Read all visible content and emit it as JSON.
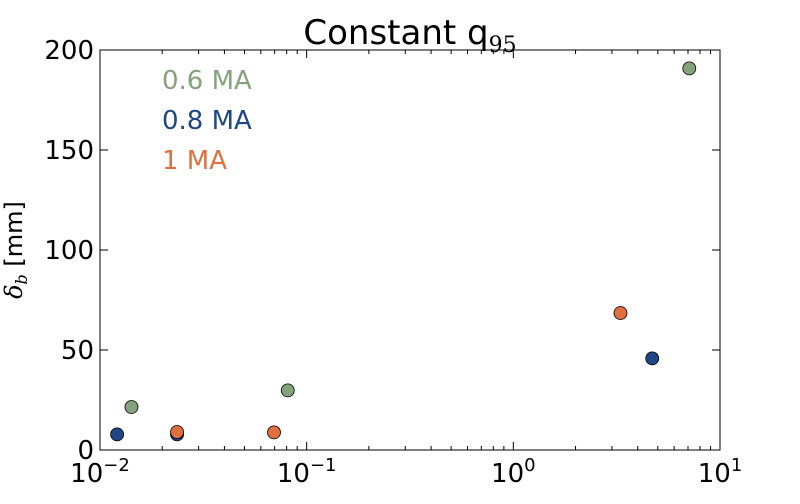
{
  "chart_data": {
    "type": "scatter",
    "title": "Constant q",
    "title_subscript": "95",
    "xlabel": "",
    "ylabel": "δ",
    "ylabel_subscript": "b",
    "ylabel_unit": " [mm]",
    "xscale": "log",
    "xlim": [
      0.01,
      10
    ],
    "ylim": [
      0,
      200
    ],
    "yticks": [
      0,
      50,
      100,
      150,
      200
    ],
    "ytick_labels": [
      "0",
      "50",
      "100",
      "150",
      "200"
    ],
    "xticks": [
      0.01,
      0.1,
      1,
      10
    ],
    "xtick_labels": [
      {
        "base": "10",
        "exp": "−2"
      },
      {
        "base": "10",
        "exp": "−1"
      },
      {
        "base": "10",
        "exp": "0"
      },
      {
        "base": "10",
        "exp": "1"
      }
    ],
    "grid": false,
    "legend_position": "top-left",
    "series": [
      {
        "name": "0.6 MA",
        "color": "#84a27b",
        "points": [
          {
            "x": 0.0142,
            "y": 21.5
          },
          {
            "x": 0.081,
            "y": 29.8
          },
          {
            "x": 7.1,
            "y": 190.8
          }
        ]
      },
      {
        "name": "0.8 MA",
        "color": "#1f4788",
        "points": [
          {
            "x": 0.0121,
            "y": 7.8
          },
          {
            "x": 0.0236,
            "y": 7.8
          },
          {
            "x": 4.7,
            "y": 45.8
          }
        ]
      },
      {
        "name": "1 MA",
        "color": "#e0703f",
        "points": [
          {
            "x": 0.0236,
            "y": 9.0
          },
          {
            "x": 0.0695,
            "y": 8.8
          },
          {
            "x": 3.3,
            "y": 68.5
          }
        ]
      }
    ]
  }
}
